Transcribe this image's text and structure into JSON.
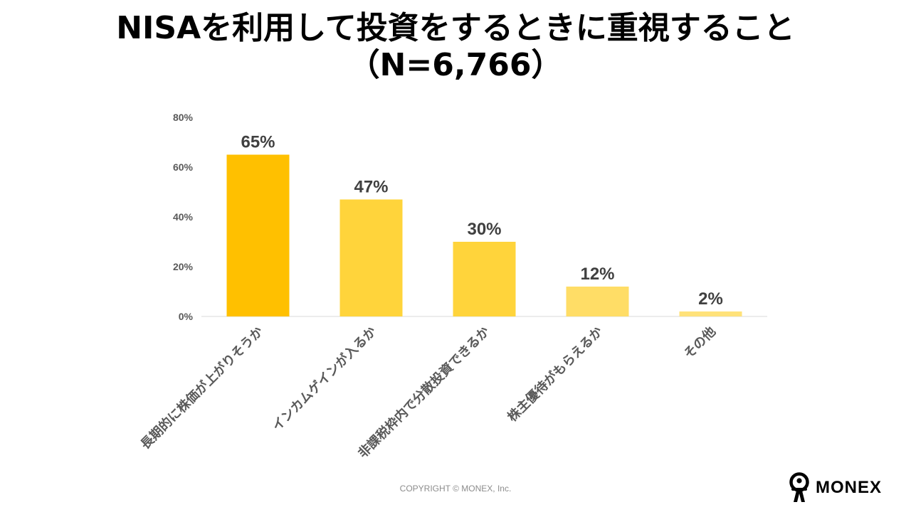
{
  "title": {
    "line1": "NISAを利用して投資をするときに重視すること",
    "line2": "（N=6,766）"
  },
  "chart_data": {
    "type": "bar",
    "categories": [
      "長期的に株価が上がりそうか",
      "インカムゲインが入るか",
      "非課税枠内で分散投資できるか",
      "株主優待がもらえるか",
      "その他"
    ],
    "values": [
      65,
      47,
      30,
      12,
      2
    ],
    "data_labels": [
      "65%",
      "47%",
      "30%",
      "12%",
      "2%"
    ],
    "yticks": [
      0,
      20,
      40,
      60,
      80
    ],
    "ytick_labels": [
      "0%",
      "20%",
      "40%",
      "60%",
      "80%"
    ],
    "ylim": [
      0,
      80
    ],
    "colors": [
      "#FFC000",
      "#FFD43B",
      "#FFD43B",
      "#FFDD66",
      "#FFE27A"
    ],
    "axis_color": "#D9D9D9",
    "grid": false,
    "legend": "none"
  },
  "footer": {
    "copyright": "COPYRIGHT © MONEX, Inc.",
    "logo_text": "MONEX"
  }
}
